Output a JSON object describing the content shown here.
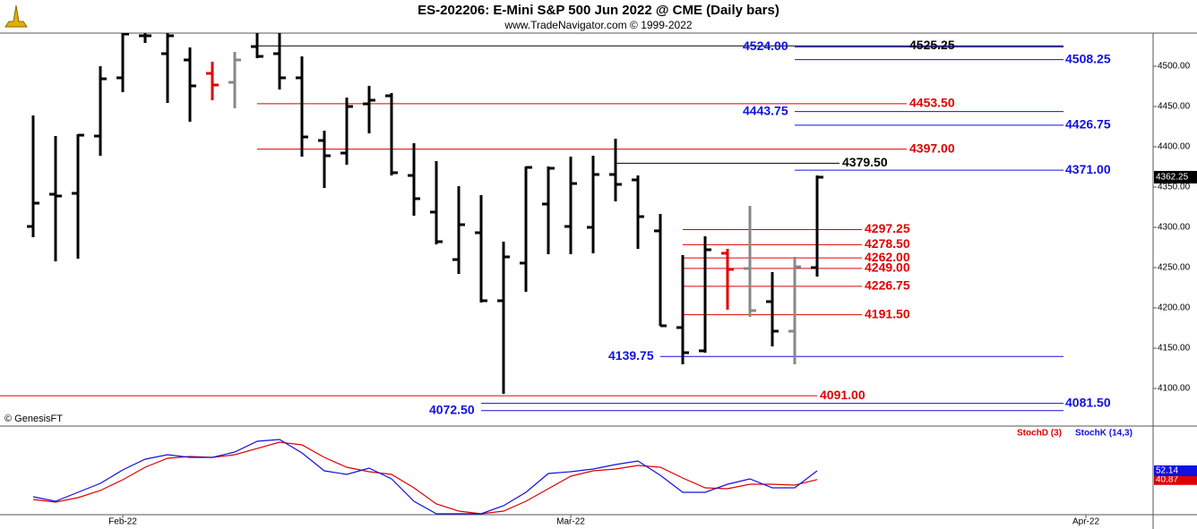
{
  "chart_data": [
    {
      "type": "ohlc",
      "title": "ES-202206:  E-Mini S&P 500 Jun 2022 @ CME  (Daily bars)",
      "subtitle": "www.TradeNavigator.com © 1999-2022",
      "annotation": "© GenesisFT",
      "open": [
        4301.1,
        4341.1,
        4342.2,
        4413.3,
        4485.6,
        4537.8,
        4515.6,
        4507.8,
        4491.1,
        4480,
        4524.4,
        4515.6,
        4485.6,
        4407.8,
        4392.2,
        4453.3,
        4463.3,
        4364.4,
        4318.9,
        4260,
        4293.3,
        4208.9,
        4255.6,
        4328.9,
        4301.1,
        4300,
        4365.6,
        4358.9,
        4295.6,
        4175.6,
        4146.7,
        4267.8,
        4248.9,
        4207.8,
        4171.1,
        4250
      ],
      "high": [
        4438.9,
        4413.3,
        4415.6,
        4500,
        4545,
        4545,
        4545,
        4523.3,
        4505.6,
        4517.8,
        4545,
        4545,
        4512.2,
        4420,
        4461.1,
        4475.6,
        4466.7,
        4404.4,
        4382.2,
        4351.1,
        4340,
        4282.2,
        4375.6,
        4375.6,
        4387.8,
        4388.9,
        4410,
        4364.4,
        4316.7,
        4265.6,
        4288.9,
        4273.3,
        4326.7,
        4244.4,
        4263.3,
        4364.4
      ],
      "low": [
        4287.8,
        4257.8,
        4261.1,
        4388.9,
        4467.8,
        4528.9,
        4454.4,
        4431.1,
        4457.8,
        4447.8,
        4510,
        4471.1,
        4387.8,
        4348.9,
        4377.8,
        4416.7,
        4364.4,
        4314.4,
        4278.9,
        4242.2,
        4206.7,
        4093.3,
        4220,
        4266.7,
        4266.7,
        4267.8,
        4332.2,
        4273.3,
        4177.8,
        4130,
        4144.4,
        4197.8,
        4188.9,
        4152.2,
        4130,
        4238.9
      ],
      "close": [
        4330,
        4338.9,
        4414.4,
        4484.4,
        4540,
        4537.8,
        4537.8,
        4475.6,
        4476.7,
        4507.8,
        4512.2,
        4485.6,
        4412.2,
        4388.9,
        4450,
        4457.8,
        4367.8,
        4335.6,
        4282.2,
        4303.3,
        4208.9,
        4263.3,
        4374.4,
        4373.3,
        4354.4,
        4365.6,
        4353.3,
        4313.3,
        4177.8,
        4144.4,
        4272.2,
        4247.8,
        4196.7,
        4171.1,
        4251.1,
        4362.25
      ],
      "colors": [
        "#000",
        "#000",
        "#000",
        "#000",
        "#000",
        "#000",
        "#000",
        "#000",
        "#e00000",
        "#888",
        "#000",
        "#000",
        "#000",
        "#000",
        "#000",
        "#000",
        "#000",
        "#000",
        "#000",
        "#000",
        "#000",
        "#000",
        "#000",
        "#000",
        "#000",
        "#000",
        "#000",
        "#000",
        "#000",
        "#000",
        "#000",
        "#e00000",
        "#888",
        "#000",
        "#888",
        "#000"
      ],
      "xlim": [
        -1.48,
        50
      ],
      "ylim": [
        4053.3,
        4541.1
      ],
      "yticks": [
        {
          "value": 4100,
          "label": "4100.00"
        },
        {
          "value": 4150,
          "label": "4150.00"
        },
        {
          "value": 4200,
          "label": "4200.00"
        },
        {
          "value": 4250,
          "label": "4250.00"
        },
        {
          "value": 4300,
          "label": "4300.00"
        },
        {
          "value": 4350,
          "label": "4350.00"
        },
        {
          "value": 4400,
          "label": "4400.00"
        },
        {
          "value": 4450,
          "label": "4450.00"
        },
        {
          "value": 4500,
          "label": "4500.00"
        }
      ],
      "levels": [
        {
          "value": 4525.25,
          "label": "4525.25",
          "color": "#000000"
        },
        {
          "value": 4524,
          "label": "4524.00",
          "color": "#1010e0"
        },
        {
          "value": 4508.25,
          "label": "4508.25",
          "color": "#1010e0"
        },
        {
          "value": 4453.5,
          "label": "4453.50",
          "color": "#e00000"
        },
        {
          "value": 4443.75,
          "label": "4443.75",
          "color": "#1010e0"
        },
        {
          "value": 4426.75,
          "label": "4426.75",
          "color": "#1010e0"
        },
        {
          "value": 4397,
          "label": "4397.00",
          "color": "#e00000"
        },
        {
          "value": 4379.5,
          "label": "4379.50",
          "color": "#000000"
        },
        {
          "value": 4371,
          "label": "4371.00",
          "color": "#1010e0"
        },
        {
          "value": 4297.25,
          "label": "4297.25",
          "color": "#e00000"
        },
        {
          "value": 4278.5,
          "label": "4278.50",
          "color": "#e00000"
        },
        {
          "value": 4262,
          "label": "4262.00",
          "color": "#e00000"
        },
        {
          "value": 4249,
          "label": "4249.00",
          "color": "#e00000"
        },
        {
          "value": 4226.75,
          "label": "4226.75",
          "color": "#e00000"
        },
        {
          "value": 4191.5,
          "label": "4191.50",
          "color": "#e00000"
        },
        {
          "value": 4139.75,
          "label": "4139.75",
          "color": "#1010e0"
        },
        {
          "value": 4091,
          "label": "4091.00",
          "color": "#e00000"
        },
        {
          "value": 4081.5,
          "label": "4081.50",
          "color": "#1010e0"
        },
        {
          "value": 4072.5,
          "label": "4072.50",
          "color": "#1010e0"
        }
      ]
    },
    {
      "type": "line",
      "xlim": [
        -1.48,
        50
      ],
      "ylim": [
        -4.4,
        109.8
      ],
      "xticks": [
        {
          "value": 4,
          "label": "Feb-22"
        },
        {
          "value": 24,
          "label": "Mar-22"
        },
        {
          "value": 47,
          "label": "Apr-22"
        }
      ],
      "series": [
        {
          "name": "StochD (3)",
          "color": "#e00000",
          "values": [
            15.2,
            11.8,
            17.5,
            26.7,
            40.6,
            56.7,
            68.3,
            70.6,
            69.4,
            72.9,
            80.9,
            89.0,
            85.6,
            69.4,
            56.7,
            51.0,
            47.5,
            30.2,
            9.5,
            0.2,
            -3.2,
            0.2,
            12.9,
            29.1,
            45.2,
            52.1,
            54.4,
            59.0,
            56.7,
            42.9,
            30.2,
            29.1,
            34.8,
            34.8,
            33.7,
            40.87
          ]
        },
        {
          "name": "StochK (14,3)",
          "color": "#1010e0",
          "values": [
            18.7,
            12.9,
            24.4,
            36.0,
            53.3,
            67.1,
            72.9,
            69.4,
            69.4,
            76.3,
            90.2,
            92.5,
            75.2,
            52.1,
            47.5,
            55.6,
            41.7,
            12.9,
            -3.2,
            -3.2,
            -3.2,
            7.1,
            24.4,
            48.7,
            51.0,
            54.4,
            60.2,
            64.8,
            46.3,
            24.4,
            24.4,
            34.8,
            41.7,
            30.2,
            30.2,
            52.14
          ]
        }
      ]
    }
  ]
}
